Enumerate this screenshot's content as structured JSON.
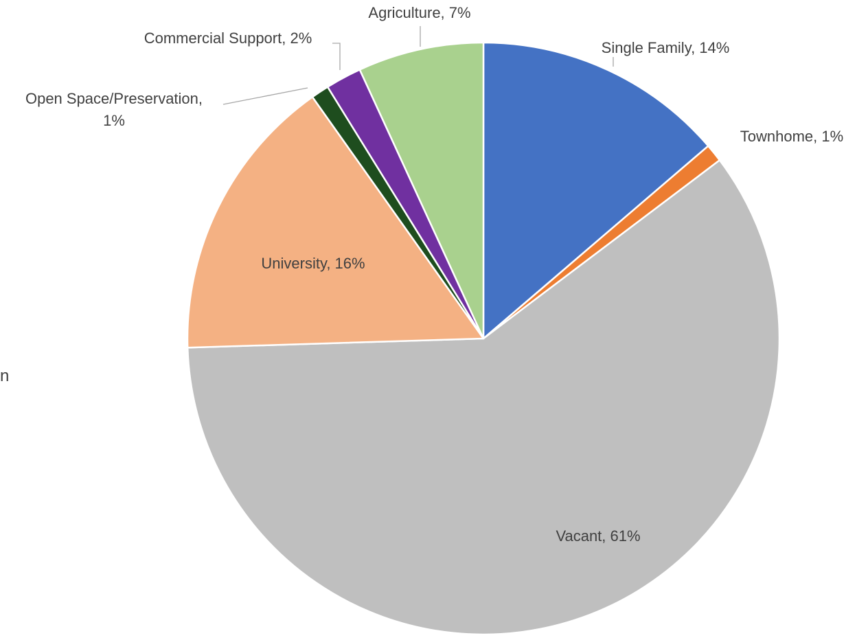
{
  "chart_data": {
    "type": "pie",
    "title": "",
    "start_angle_deg": 0,
    "direction": "clockwise",
    "slices": [
      {
        "label": "Single Family",
        "value": 14,
        "display": "Single Family, 14%",
        "color": "#4472c4"
      },
      {
        "label": "Townhome",
        "value": 1,
        "display": "Townhome, 1%",
        "color": "#ed7d31"
      },
      {
        "label": "Vacant",
        "value": 61,
        "display": "Vacant, 61%",
        "color": "#bfbfbf"
      },
      {
        "label": "University",
        "value": 16,
        "display": "University, 16%",
        "color": "#f4b183"
      },
      {
        "label": "Open Space/Preservation",
        "value": 1,
        "display": [
          "Open Space/Preservation,",
          "1%"
        ],
        "color": "#1e4d1e"
      },
      {
        "label": "Commercial Support",
        "value": 2,
        "display": "Commercial Support, 2%",
        "color": "#7030a0"
      },
      {
        "label": "Agriculture",
        "value": 7,
        "display": "Agriculture, 7%",
        "color": "#a9d18e"
      }
    ],
    "legend": "none",
    "data_labels": "category, percentage"
  },
  "fragment_text": "n"
}
